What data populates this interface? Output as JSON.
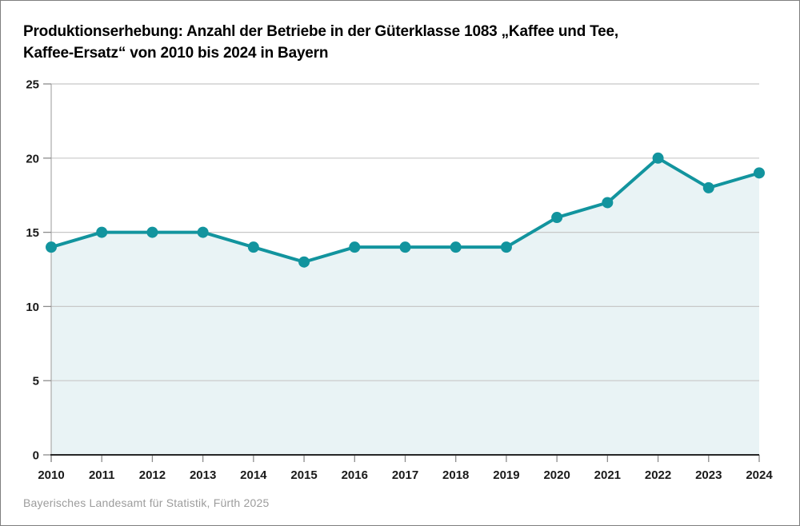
{
  "title": {
    "line1": "Produktionserhebung: Anzahl der Betriebe in der Güterklasse 1083 „Kaffee und Tee,",
    "line2": "Kaffee-Ersatz“ von 2010 bis 2024 in Bayern"
  },
  "footer": {
    "source": "Bayerisches Landesamt für Statistik, Fürth 2025"
  },
  "colors": {
    "line": "#12949e",
    "marker": "#12949e",
    "area_fill": "#e9f3f5",
    "grid": "#c8c8c8",
    "y_axis": "#b0b0b0",
    "x_axis": "#262626",
    "tick": "#8c8c8c",
    "tick_label": "#1a1a1a",
    "footer_text": "#9c9c9c",
    "border": "#7f7f7f"
  },
  "chart_data": {
    "type": "line",
    "title": "Produktionserhebung: Anzahl der Betriebe in der Güterklasse 1083 „Kaffee und Tee, Kaffee-Ersatz“ von 2010 bis 2024 in Bayern",
    "categories": [
      "2010",
      "2011",
      "2012",
      "2013",
      "2014",
      "2015",
      "2016",
      "2017",
      "2018",
      "2019",
      "2020",
      "2021",
      "2022",
      "2023",
      "2024"
    ],
    "values": [
      14,
      15,
      15,
      15,
      14,
      13,
      14,
      14,
      14,
      14,
      16,
      17,
      20,
      18,
      19
    ],
    "series_name": "Anzahl der Betriebe",
    "xlabel": "",
    "ylabel": "",
    "ylim": [
      0,
      25
    ],
    "yticks": [
      0,
      5,
      10,
      15,
      20,
      25
    ],
    "grid": true,
    "legend": "none",
    "marker_style": "circle",
    "area_filled": true
  }
}
